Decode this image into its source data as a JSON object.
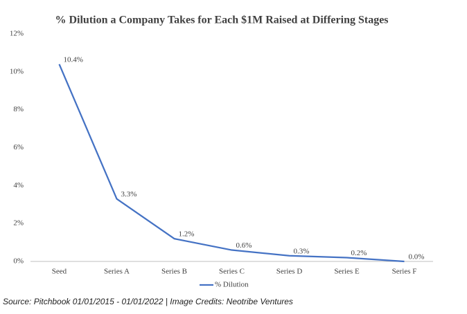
{
  "chart_data": {
    "type": "line",
    "title": "% Dilution a Company Takes for Each $1M Raised at Differing Stages",
    "categories": [
      "Seed",
      "Series A",
      "Series B",
      "Series C",
      "Series D",
      "Series E",
      "Series F"
    ],
    "series": [
      {
        "name": "% Dilution",
        "color": "#4472c4",
        "values": [
          10.4,
          3.3,
          1.2,
          0.6,
          0.3,
          0.2,
          0.0
        ],
        "value_labels": [
          "10.4%",
          "3.3%",
          "1.2%",
          "0.6%",
          "0.3%",
          "0.2%",
          "0.0%"
        ]
      }
    ],
    "ylim": [
      0,
      12
    ],
    "yticks": [
      {
        "value": 0,
        "label": "0%"
      },
      {
        "value": 2,
        "label": "2%"
      },
      {
        "value": 4,
        "label": "4%"
      },
      {
        "value": 6,
        "label": "6%"
      },
      {
        "value": 8,
        "label": "8%"
      },
      {
        "value": 10,
        "label": "10%"
      },
      {
        "value": 12,
        "label": "12%"
      }
    ],
    "grid": false,
    "legend": "bottom",
    "source": "Source: Pitchbook 01/01/2015 - 01/01/2022 | Image Credits: Neotribe Ventures"
  }
}
